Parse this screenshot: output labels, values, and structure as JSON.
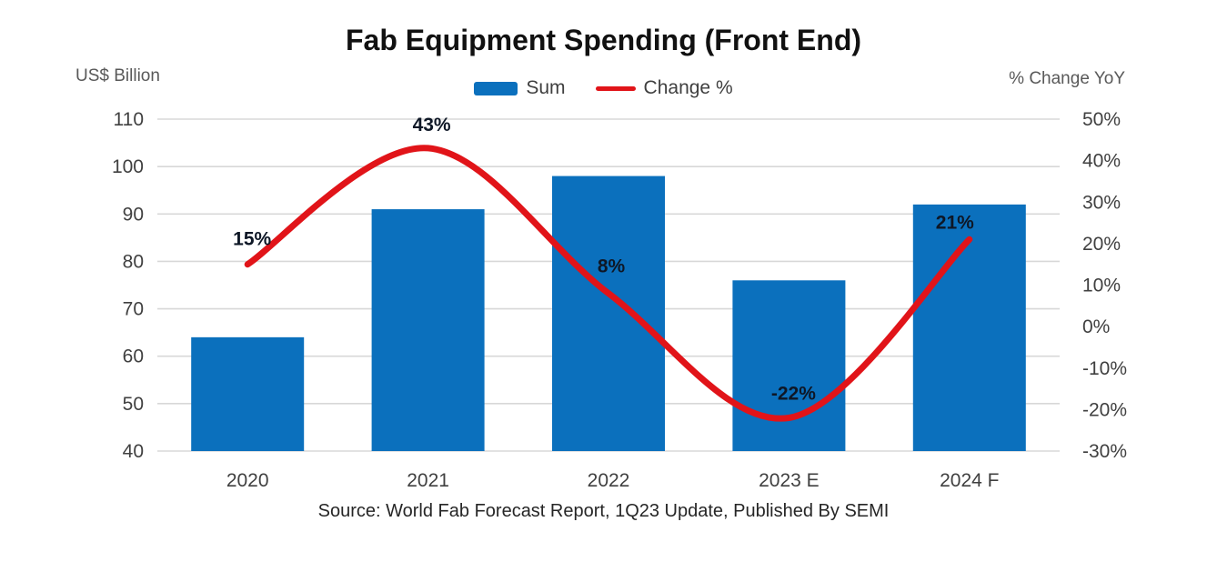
{
  "chart_data": {
    "type": "combo",
    "title": "Fab Equipment Spending (Front End)",
    "source_note": "Source: World Fab Forecast Report, 1Q23 Update, Published By SEMI",
    "categories": [
      "2020",
      "2021",
      "2022",
      "2023 E",
      "2024 F"
    ],
    "series": [
      {
        "name": "Sum",
        "type": "bar",
        "axis": "left",
        "color": "#0b70bd",
        "values": [
          64,
          91,
          98,
          76,
          92
        ]
      },
      {
        "name": "Change %",
        "type": "line",
        "axis": "right",
        "color": "#e11419",
        "smooth": true,
        "values": [
          15,
          43,
          8,
          -22,
          21
        ],
        "data_labels": [
          "15%",
          "43%",
          "8%",
          "-22%",
          "21%"
        ]
      }
    ],
    "left_axis": {
      "unit": "US$ Billion",
      "min": 40,
      "max": 110,
      "ticks": [
        110,
        100,
        90,
        80,
        70,
        60,
        50,
        40
      ]
    },
    "right_axis": {
      "unit": "% Change YoY",
      "min": -30,
      "max": 50,
      "ticks": [
        {
          "label": "50%",
          "value": 50
        },
        {
          "label": "40%",
          "value": 40
        },
        {
          "label": "30%",
          "value": 30
        },
        {
          "label": "20%",
          "value": 20
        },
        {
          "label": "10%",
          "value": 10
        },
        {
          "label": "0%",
          "value": 0
        },
        {
          "label": "-10%",
          "value": -10
        },
        {
          "label": "-20%",
          "value": -20
        },
        {
          "label": "-30%",
          "value": -30
        }
      ]
    },
    "grid": true,
    "legend_position": "top",
    "colors": {
      "bar_blue": "#0b70bd",
      "line_red": "#e11419",
      "gridline": "#d8d8d8",
      "tick_text": "#404040",
      "data_label_text": "#0e1726"
    }
  }
}
